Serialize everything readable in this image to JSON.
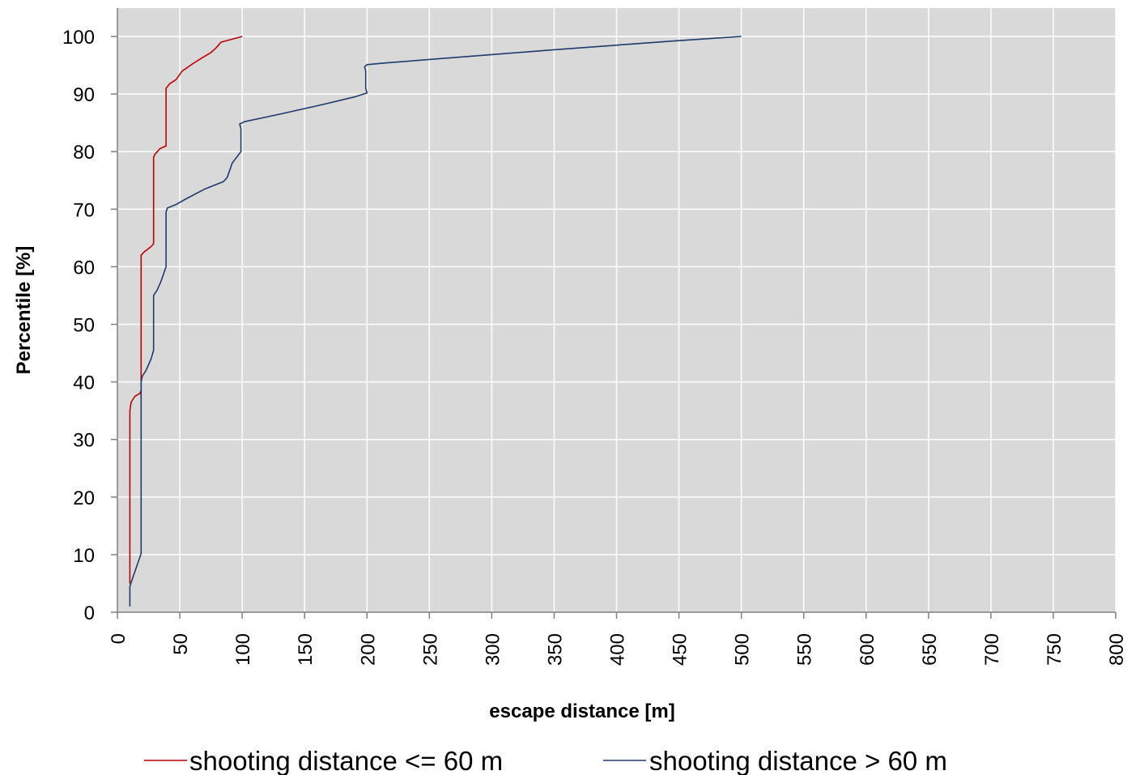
{
  "chart_data": {
    "type": "line",
    "title": "",
    "xlabel": "escape distance [m]",
    "ylabel": "Percentile [%]",
    "xlim": [
      0,
      800
    ],
    "ylim": [
      0,
      105
    ],
    "x_ticks": [
      0,
      50,
      100,
      150,
      200,
      250,
      300,
      350,
      400,
      450,
      500,
      550,
      600,
      650,
      700,
      750,
      800
    ],
    "y_ticks": [
      0,
      10,
      20,
      30,
      40,
      50,
      60,
      70,
      80,
      90,
      100
    ],
    "grid": true,
    "legend_position": "bottom",
    "plot_background": "#d9d9d9",
    "series": [
      {
        "name": "shooting distance <= 60 m",
        "color": "#c00000",
        "points": [
          [
            10,
            5
          ],
          [
            10,
            35
          ],
          [
            11,
            36.5
          ],
          [
            14,
            37.5
          ],
          [
            18,
            38
          ],
          [
            19,
            38.5
          ],
          [
            19,
            62
          ],
          [
            21,
            62.5
          ],
          [
            27,
            63.5
          ],
          [
            29,
            64
          ],
          [
            29,
            79
          ],
          [
            30,
            79.5
          ],
          [
            34,
            80.5
          ],
          [
            39,
            81
          ],
          [
            39,
            91
          ],
          [
            42,
            91.8
          ],
          [
            47,
            92.5
          ],
          [
            52,
            94
          ],
          [
            60,
            95.2
          ],
          [
            68,
            96.3
          ],
          [
            75,
            97.2
          ],
          [
            79,
            98
          ],
          [
            83,
            99
          ],
          [
            100,
            100
          ]
        ]
      },
      {
        "name": "shooting distance > 60 m",
        "color": "#1f3b6e",
        "points": [
          [
            10,
            1
          ],
          [
            10,
            4.5
          ],
          [
            19,
            10.2
          ],
          [
            19,
            38
          ],
          [
            19,
            40
          ],
          [
            20,
            41
          ],
          [
            23,
            42
          ],
          [
            27,
            44
          ],
          [
            29,
            45.5
          ],
          [
            29,
            55
          ],
          [
            32,
            56
          ],
          [
            35,
            57.5
          ],
          [
            39,
            60
          ],
          [
            39,
            69.5
          ],
          [
            40,
            70.2
          ],
          [
            47,
            70.8
          ],
          [
            55,
            71.8
          ],
          [
            70,
            73.5
          ],
          [
            85,
            74.8
          ],
          [
            88,
            75.5
          ],
          [
            92,
            78
          ],
          [
            99,
            80
          ],
          [
            99,
            84
          ],
          [
            98,
            84.8
          ],
          [
            102,
            85.2
          ],
          [
            130,
            86.5
          ],
          [
            165,
            88.2
          ],
          [
            190,
            89.5
          ],
          [
            200,
            90.2
          ],
          [
            199,
            91
          ],
          [
            199,
            94
          ],
          [
            198,
            94.7
          ],
          [
            200,
            95.1
          ],
          [
            215,
            95.4
          ],
          [
            350,
            97.7
          ],
          [
            445,
            99.2
          ],
          [
            500,
            100
          ]
        ]
      }
    ]
  }
}
